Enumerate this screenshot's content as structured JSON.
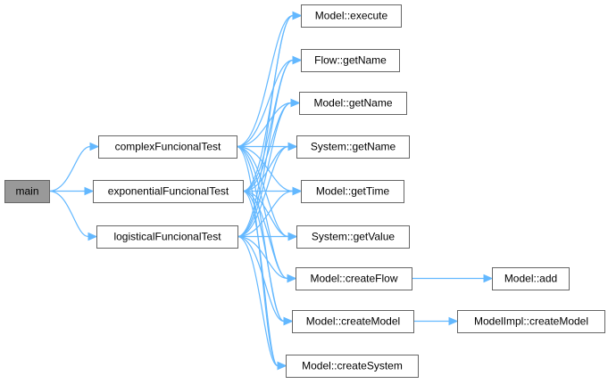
{
  "graph": {
    "nodes": [
      {
        "id": "main",
        "label": "main",
        "highlight": true
      },
      {
        "id": "complex",
        "label": "complexFuncionalTest"
      },
      {
        "id": "exponential",
        "label": "exponentialFuncionalTest"
      },
      {
        "id": "logistical",
        "label": "logisticalFuncionalTest"
      },
      {
        "id": "execute",
        "label": "Model::execute"
      },
      {
        "id": "flowGetName",
        "label": "Flow::getName"
      },
      {
        "id": "modelGetName",
        "label": "Model::getName"
      },
      {
        "id": "systemGetName",
        "label": "System::getName"
      },
      {
        "id": "getTime",
        "label": "Model::getTime"
      },
      {
        "id": "getValue",
        "label": "System::getValue"
      },
      {
        "id": "createFlow",
        "label": "Model::createFlow"
      },
      {
        "id": "createModel",
        "label": "Model::createModel"
      },
      {
        "id": "createSystem",
        "label": "Model::createSystem"
      },
      {
        "id": "add",
        "label": "Model::add"
      },
      {
        "id": "implCreateModel",
        "label": "ModelImpl::createModel"
      }
    ],
    "edges": [
      [
        "main",
        "complex"
      ],
      [
        "main",
        "exponential"
      ],
      [
        "main",
        "logistical"
      ],
      [
        "complex",
        "execute"
      ],
      [
        "complex",
        "flowGetName"
      ],
      [
        "complex",
        "modelGetName"
      ],
      [
        "complex",
        "systemGetName"
      ],
      [
        "complex",
        "getTime"
      ],
      [
        "complex",
        "getValue"
      ],
      [
        "complex",
        "createFlow"
      ],
      [
        "complex",
        "createModel"
      ],
      [
        "complex",
        "createSystem"
      ],
      [
        "exponential",
        "execute"
      ],
      [
        "exponential",
        "flowGetName"
      ],
      [
        "exponential",
        "modelGetName"
      ],
      [
        "exponential",
        "systemGetName"
      ],
      [
        "exponential",
        "getTime"
      ],
      [
        "exponential",
        "getValue"
      ],
      [
        "exponential",
        "createFlow"
      ],
      [
        "exponential",
        "createModel"
      ],
      [
        "exponential",
        "createSystem"
      ],
      [
        "logistical",
        "execute"
      ],
      [
        "logistical",
        "flowGetName"
      ],
      [
        "logistical",
        "modelGetName"
      ],
      [
        "logistical",
        "systemGetName"
      ],
      [
        "logistical",
        "getTime"
      ],
      [
        "logistical",
        "getValue"
      ],
      [
        "logistical",
        "createFlow"
      ],
      [
        "logistical",
        "createModel"
      ],
      [
        "logistical",
        "createSystem"
      ],
      [
        "createFlow",
        "add"
      ],
      [
        "createModel",
        "implCreateModel"
      ]
    ],
    "colors": {
      "edge": "#63b8ff",
      "border": "#666666",
      "highlight": "#999999"
    }
  }
}
